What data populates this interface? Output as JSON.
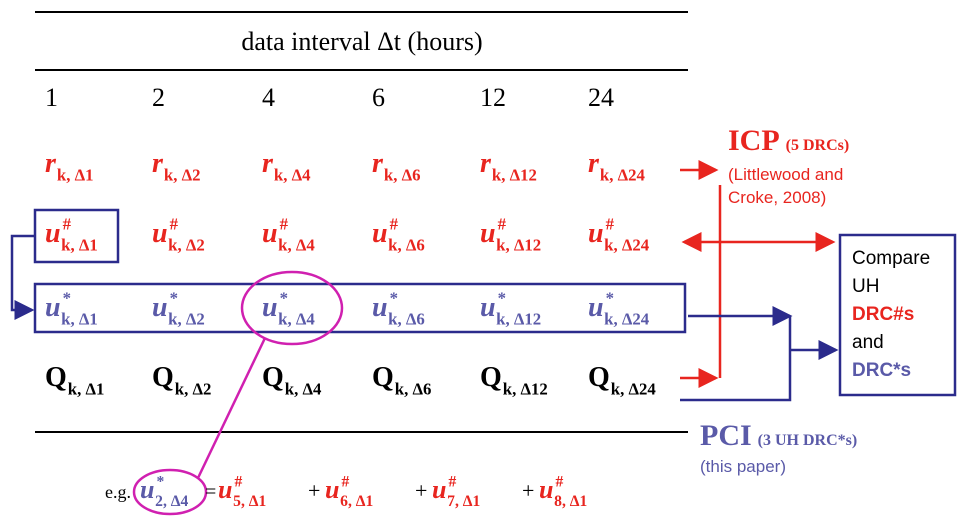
{
  "header": {
    "title": "data interval Δt (hours)"
  },
  "columns": [
    "1",
    "2",
    "4",
    "6",
    "12",
    "24"
  ],
  "rows": [
    {
      "symbol": "r",
      "cells": [
        "k, Δ1",
        "k, Δ2",
        "k, Δ4",
        "k, Δ6",
        "k, Δ12",
        "k, Δ24"
      ]
    },
    {
      "symbol": "u",
      "sup": "#",
      "cells": [
        "k, Δ1",
        "k, Δ2",
        "k, Δ4",
        "k, Δ6",
        "k, Δ12",
        "k, Δ24"
      ]
    },
    {
      "symbol": "u",
      "sup": "*",
      "cells": [
        "k, Δ1",
        "k, Δ2",
        "k, Δ4",
        "k, Δ6",
        "k, Δ12",
        "k, Δ24"
      ]
    },
    {
      "symbol": "Q",
      "cells": [
        "k, Δ1",
        "k, Δ2",
        "k, Δ4",
        "k, Δ6",
        "k, Δ12",
        "k, Δ24"
      ]
    }
  ],
  "icp": {
    "title": "ICP",
    "note": "(5 DRCs)",
    "ref": [
      "(Littlewood and",
      "Croke, 2008)"
    ]
  },
  "compare": [
    "Compare",
    "UH",
    "DRC#s",
    "and",
    "DRC*s"
  ],
  "pci": {
    "title": "PCI",
    "note": "(3 UH DRC*s)",
    "ref": "(this paper)"
  },
  "example": {
    "prefix": "e.g.",
    "lhs": {
      "symbol": "u",
      "sup": "*",
      "sub": "2, Δ4"
    },
    "equals": "=",
    "plus": "+",
    "terms": [
      {
        "symbol": "u",
        "sup": "#",
        "sub": "5, Δ1"
      },
      {
        "symbol": "u",
        "sup": "#",
        "sub": "6, Δ1"
      },
      {
        "symbol": "u",
        "sup": "#",
        "sub": "7, Δ1"
      },
      {
        "symbol": "u",
        "sup": "#",
        "sub": "8, Δ1"
      }
    ]
  }
}
